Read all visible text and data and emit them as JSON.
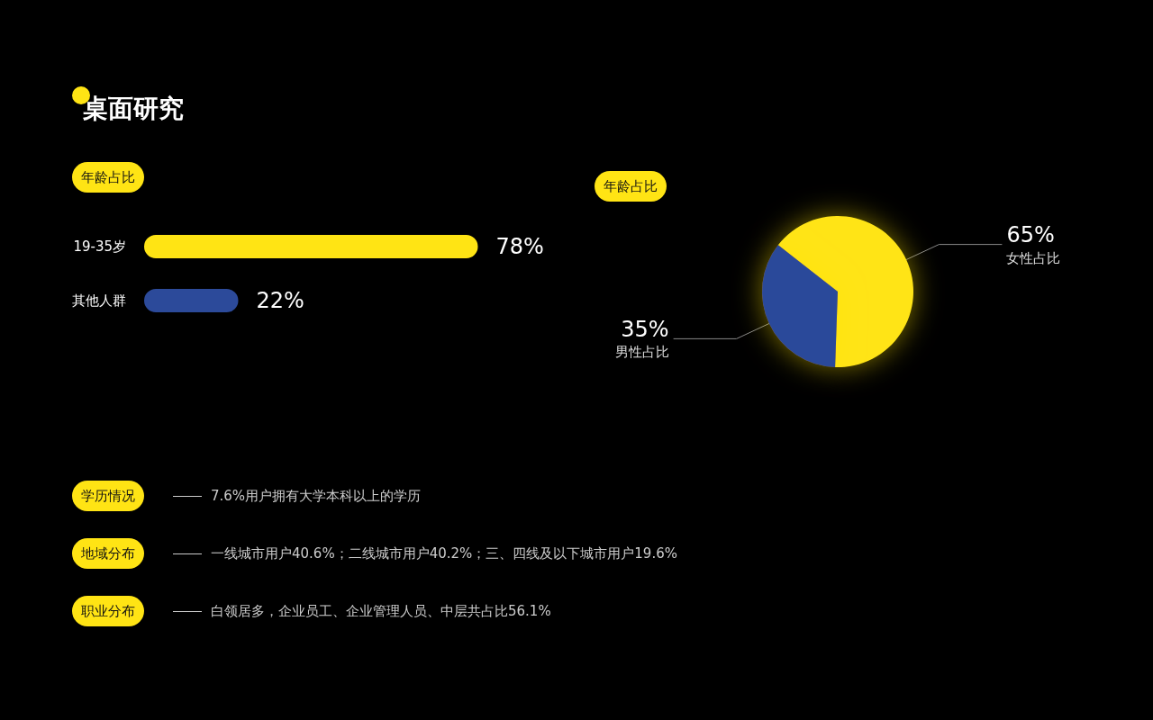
{
  "chart_data": [
    {
      "type": "bar",
      "title": "桌面研究",
      "subtitle": "年龄占比",
      "orientation": "horizontal",
      "categories": [
        "19-35岁",
        "其他人群"
      ],
      "values": [
        78,
        22
      ],
      "colors": [
        "#ffe414",
        "#2c4a9a"
      ],
      "value_labels": [
        "78%",
        "22%"
      ]
    },
    {
      "type": "pie",
      "subtitle": "年龄占比",
      "categories": [
        "女性占比",
        "男性占比"
      ],
      "values": [
        65,
        35
      ],
      "colors": [
        "#ffe414",
        "#2c4a9a"
      ],
      "value_labels": [
        "65%",
        "35%"
      ]
    },
    {
      "type": "other",
      "annotations": [
        "学历情况",
        "7.6%用户拥有大学本科以上的学历",
        "地域分布",
        "一线城市用户40.6%；二线城市用户40.2%；三、四线及以下城市用户19.6%",
        "职业分布",
        "白领居多，企业员工、企业管理人员、中层共占比56.1%"
      ]
    }
  ]
}
